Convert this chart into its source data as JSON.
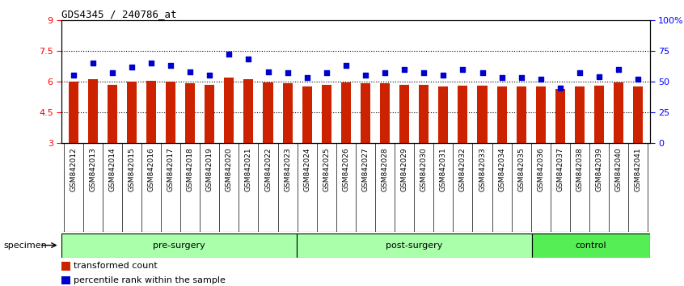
{
  "title": "GDS4345 / 240786_at",
  "categories": [
    "GSM842012",
    "GSM842013",
    "GSM842014",
    "GSM842015",
    "GSM842016",
    "GSM842017",
    "GSM842018",
    "GSM842019",
    "GSM842020",
    "GSM842021",
    "GSM842022",
    "GSM842023",
    "GSM842024",
    "GSM842025",
    "GSM842026",
    "GSM842027",
    "GSM842028",
    "GSM842029",
    "GSM842030",
    "GSM842031",
    "GSM842032",
    "GSM842033",
    "GSM842034",
    "GSM842035",
    "GSM842036",
    "GSM842037",
    "GSM842038",
    "GSM842039",
    "GSM842040",
    "GSM842041"
  ],
  "bar_values": [
    6.0,
    6.1,
    5.85,
    6.0,
    6.05,
    6.0,
    5.9,
    5.85,
    6.2,
    6.1,
    5.95,
    5.9,
    5.75,
    5.85,
    5.95,
    5.9,
    5.9,
    5.85,
    5.85,
    5.75,
    5.8,
    5.8,
    5.75,
    5.75,
    5.75,
    5.65,
    5.75,
    5.8,
    5.95,
    5.75
  ],
  "dot_values_pct": [
    55,
    65,
    57,
    62,
    65,
    63,
    58,
    55,
    72,
    68,
    58,
    57,
    53,
    57,
    63,
    55,
    57,
    60,
    57,
    55,
    60,
    57,
    53,
    53,
    52,
    45,
    57,
    54,
    60,
    52
  ],
  "bar_color": "#CC2200",
  "dot_color": "#0000CC",
  "ylim_left": [
    3,
    9
  ],
  "ylim_right": [
    0,
    100
  ],
  "yticks_left": [
    3,
    4.5,
    6,
    7.5,
    9
  ],
  "yticks_right": [
    0,
    25,
    50,
    75,
    100
  ],
  "ytick_labels_left": [
    "3",
    "4.5",
    "6",
    "7.5",
    "9"
  ],
  "ytick_labels_right": [
    "0",
    "25",
    "50",
    "75",
    "100%"
  ],
  "hlines": [
    4.5,
    6.0,
    7.5
  ],
  "legend_items": [
    {
      "label": "transformed count",
      "color": "#CC2200"
    },
    {
      "label": "percentile rank within the sample",
      "color": "#0000CC"
    }
  ],
  "specimen_label": "specimen",
  "group_defs": [
    {
      "start": 0,
      "end": 12,
      "label": "pre-surgery",
      "color": "#AAFFAA"
    },
    {
      "start": 12,
      "end": 24,
      "label": "post-surgery",
      "color": "#AAFFAA"
    },
    {
      "start": 24,
      "end": 30,
      "label": "control",
      "color": "#55EE55"
    }
  ],
  "xtick_bg_color": "#CCCCCC",
  "bar_width": 0.5
}
